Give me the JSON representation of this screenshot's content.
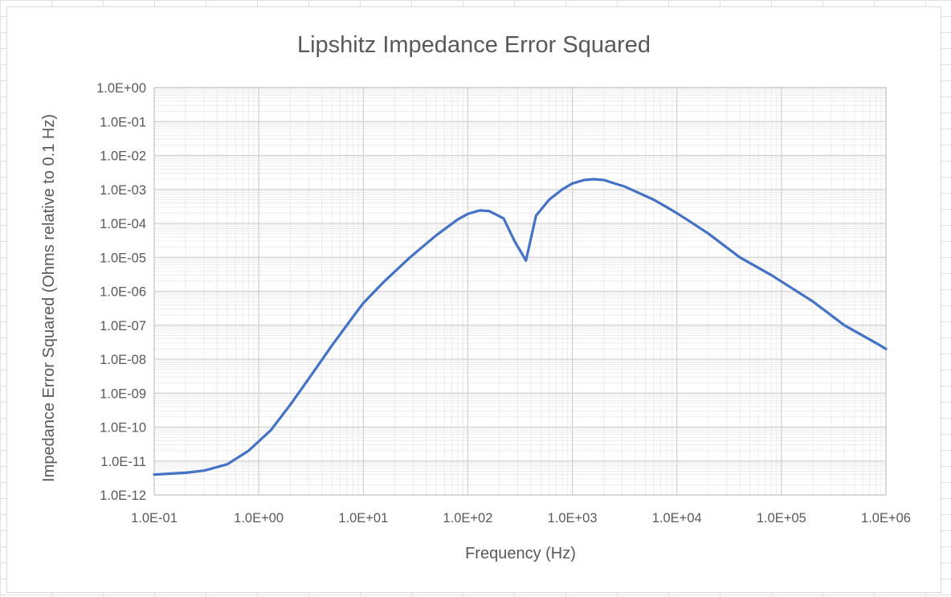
{
  "chart_data": {
    "type": "line",
    "title": "Lipshitz Impedance Error Squared",
    "xlabel": "Frequency (Hz)",
    "ylabel": "Impedance Error Squared (Ohms relative to 0.1 Hz)",
    "x_scale": "log",
    "y_scale": "log",
    "xlim": [
      0.1,
      1000000
    ],
    "ylim": [
      1e-12,
      1
    ],
    "x_tick_labels": [
      "1.0E-01",
      "1.0E+00",
      "1.0E+01",
      "1.0E+02",
      "1.0E+03",
      "1.0E+04",
      "1.0E+05",
      "1.0E+06"
    ],
    "y_tick_labels": [
      "1.0E+00",
      "1.0E-01",
      "1.0E-02",
      "1.0E-03",
      "1.0E-04",
      "1.0E-05",
      "1.0E-06",
      "1.0E-07",
      "1.0E-08",
      "1.0E-09",
      "1.0E-10",
      "1.0E-11",
      "1.0E-12"
    ],
    "grid": true,
    "legend": "none",
    "series": [
      {
        "color": "#4472c4",
        "x": [
          0.1,
          0.2,
          0.3,
          0.5,
          0.8,
          1.3,
          2,
          3.2,
          5,
          8,
          10,
          16,
          28,
          50,
          80,
          100,
          130,
          160,
          220,
          280,
          360,
          450,
          600,
          800,
          1000,
          1300,
          1600,
          2000,
          3200,
          6000,
          8000,
          10000,
          13000,
          20000,
          40000,
          80000,
          200000,
          400000,
          800000,
          1000000
        ],
        "y": [
          4e-12,
          4.5e-12,
          5.2e-12,
          8e-12,
          2e-11,
          8e-11,
          4.5e-10,
          3.5e-09,
          2.5e-08,
          1.8e-07,
          4.5e-07,
          2e-06,
          1e-05,
          4.5e-05,
          0.00013,
          0.00019,
          0.00024,
          0.00023,
          0.00014,
          3e-05,
          8e-06,
          0.00017,
          0.0005,
          0.001,
          0.0015,
          0.0019,
          0.002,
          0.0019,
          0.0012,
          0.0005,
          0.0003,
          0.0002,
          0.00012,
          5e-05,
          1e-05,
          3e-06,
          5e-07,
          1e-07,
          3e-08,
          2e-08
        ]
      }
    ]
  }
}
